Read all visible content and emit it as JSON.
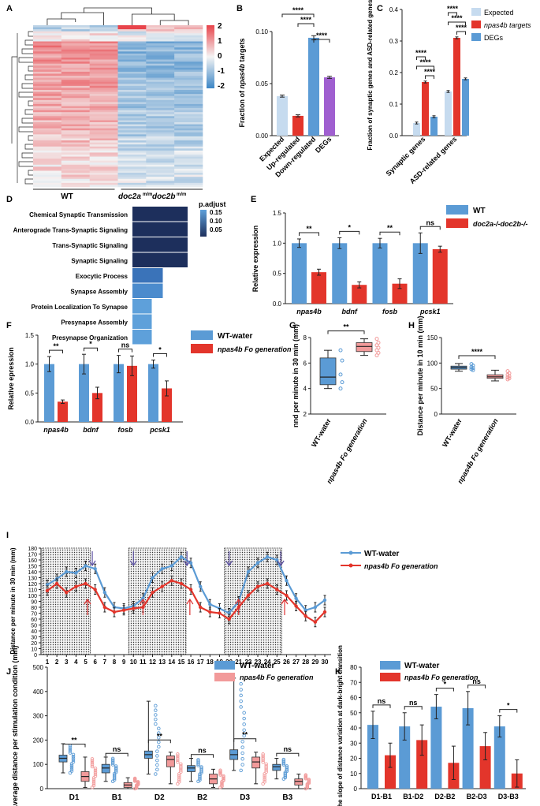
{
  "panels": {
    "A": {
      "letter": "A",
      "colorbar_ticks": [
        "2",
        "1",
        "0",
        "-1",
        "-2"
      ],
      "group_labels": [
        "WT",
        "doc2a",
        "m/m",
        "doc2b",
        "m/m"
      ],
      "colors": {
        "high": "#e8434a",
        "mid": "#f4f4f4",
        "low": "#3c86c6"
      }
    },
    "B": {
      "letter": "B",
      "chart_data": {
        "type": "bar",
        "categories": [
          "Expected",
          "Up-regulated",
          "Down-regulated",
          "DEGs"
        ],
        "values": [
          0.038,
          0.019,
          0.094,
          0.056
        ],
        "errors": [
          0.001,
          0.001,
          0.002,
          0.001
        ],
        "colors": [
          "#c6dbef",
          "#e3352b",
          "#5b9bd5",
          "#a05fd0"
        ],
        "ylabel_prefix": "Fraction of ",
        "ylabel_italic": "npas4b",
        "ylabel_suffix": " targets",
        "ylim": [
          0,
          0.1
        ],
        "yticks": [
          "0.00",
          "0.05",
          "0.10"
        ],
        "sig": [
          {
            "a": 0,
            "b": 2,
            "label": "****"
          },
          {
            "a": 1,
            "b": 2,
            "label": "****"
          },
          {
            "a": 2,
            "b": 3,
            "label": "****"
          }
        ]
      }
    },
    "C": {
      "letter": "C",
      "chart_data": {
        "type": "bar",
        "groups": [
          "Synaptic genes",
          "ASD-related genes"
        ],
        "series": [
          {
            "name": "Expected",
            "values": [
              0.04,
              0.14
            ],
            "color": "#c6dbef"
          },
          {
            "name": "npas4b targets",
            "values": [
              0.17,
              0.31
            ],
            "color": "#e3352b"
          },
          {
            "name": "DEGs",
            "values": [
              0.06,
              0.18
            ],
            "color": "#5b9bd5"
          }
        ],
        "ylabel": "Fraction of synaptic genes and ASD-related genes",
        "ylim": [
          0,
          0.4
        ],
        "yticks": [
          "0.0",
          "0.1",
          "0.2",
          "0.3",
          "0.4"
        ],
        "sig_label": "****"
      }
    },
    "D": {
      "letter": "D",
      "chart_data": {
        "type": "bar",
        "terms": [
          "Chemical Synaptic Transmission",
          "Anterograde Trans-Synaptic Signaling",
          "Trans-Synaptic Signaling",
          "Synaptic Signaling",
          "Exocytic Process",
          "Synapse Assembly",
          "Protein Localization To Synapse",
          "Presynapse Assembly",
          "Presynapse Organization"
        ],
        "values": [
          1.0,
          1.0,
          1.0,
          1.0,
          0.55,
          0.55,
          0.35,
          0.35,
          0.35
        ],
        "colors": [
          "#1d2f5c",
          "#1d2f5c",
          "#1d2f5c",
          "#1d2f5c",
          "#3a73b9",
          "#4b8bcd",
          "#5ea0da",
          "#5ea0da",
          "#5ea0da"
        ],
        "legend_title": "p.adjust",
        "legend_ticks": [
          "0.15",
          "0.10",
          "0.05"
        ]
      }
    },
    "E": {
      "letter": "E",
      "chart_data": {
        "type": "bar",
        "categories": [
          "npas4b",
          "bdnf",
          "fosb",
          "pcsk1"
        ],
        "series": [
          {
            "name": "WT",
            "values": [
              1.0,
              1.0,
              1.0,
              1.0
            ],
            "errors": [
              0.07,
              0.09,
              0.08,
              0.17
            ],
            "color": "#5b9bd5"
          },
          {
            "name": "doc2a-/-doc2b-/-",
            "values": [
              0.52,
              0.31,
              0.33,
              0.9
            ],
            "errors": [
              0.05,
              0.05,
              0.08,
              0.05
            ],
            "color": "#e3352b"
          }
        ],
        "sig": [
          "**",
          "*",
          "**",
          "ns"
        ],
        "ylabel": "Relative expression",
        "ylim": [
          0,
          1.5
        ],
        "yticks": [
          "0.0",
          "0.5",
          "1.0",
          "1.5"
        ]
      }
    },
    "F": {
      "letter": "F",
      "chart_data": {
        "type": "bar",
        "categories": [
          "npas4b",
          "bdnf",
          "fosb",
          "pcsk1"
        ],
        "series": [
          {
            "name": "WT-water",
            "values": [
              1.0,
              1.0,
              1.0,
              1.0
            ],
            "errors": [
              0.13,
              0.17,
              0.15,
              0.07
            ],
            "color": "#5b9bd5"
          },
          {
            "name": "npas4b Fo generation",
            "values": [
              0.35,
              0.5,
              0.97,
              0.58
            ],
            "errors": [
              0.03,
              0.1,
              0.17,
              0.13
            ],
            "color": "#e3352b"
          }
        ],
        "sig": [
          "**",
          "*",
          "ns",
          "*"
        ],
        "ylabel": "Relative epression",
        "ylim": [
          0,
          1.5
        ],
        "yticks": [
          "0.0",
          "0.5",
          "1.0",
          "1.5"
        ]
      }
    },
    "G": {
      "letter": "G",
      "chart_data": {
        "type": "boxplot",
        "categories": [
          "WT-water",
          "npas4b Fo generation"
        ],
        "boxes": [
          {
            "min": 4.0,
            "q1": 4.3,
            "median": 4.9,
            "q3": 6.4,
            "max": 7.0
          },
          {
            "min": 6.6,
            "q1": 6.9,
            "median": 7.3,
            "q3": 7.6,
            "max": 7.9
          }
        ],
        "points": [
          [
            7.0,
            6.2,
            5.1,
            4.5,
            4.0
          ],
          [
            7.9,
            7.6,
            7.4,
            7.2,
            7.0,
            6.8,
            6.6
          ]
        ],
        "ylabel": "nnd per minute in 30 min (mm)",
        "ylim": [
          2,
          8
        ],
        "yticks": [
          "2",
          "4",
          "6",
          "8"
        ],
        "sig": "**"
      }
    },
    "H": {
      "letter": "H",
      "chart_data": {
        "type": "boxplot",
        "categories": [
          "WT-water",
          "npas4b Fo generation"
        ],
        "boxes": [
          {
            "min": 84,
            "q1": 88,
            "median": 91,
            "q3": 94,
            "max": 99
          },
          {
            "min": 65,
            "q1": 70,
            "median": 73,
            "q3": 77,
            "max": 86
          }
        ],
        "points": [
          [
            98,
            95,
            92,
            90,
            88,
            86
          ],
          [
            84,
            80,
            77,
            74,
            72,
            70,
            68
          ]
        ],
        "ylabel": "Distance per minute in 10 min (mm)",
        "ylim": [
          0,
          150
        ],
        "yticks": [
          "0",
          "50",
          "100",
          "150"
        ],
        "sig": "****"
      }
    },
    "I": {
      "letter": "I",
      "chart_data": {
        "type": "line",
        "x": [
          1,
          2,
          3,
          4,
          5,
          6,
          7,
          8,
          9,
          10,
          11,
          12,
          13,
          14,
          15,
          16,
          17,
          18,
          19,
          20,
          21,
          22,
          23,
          24,
          25,
          26,
          27,
          28,
          29,
          30
        ],
        "series": [
          {
            "name": "WT-water",
            "color": "#5b9bd5",
            "values": [
              118,
              128,
              140,
              138,
              150,
              145,
              105,
              80,
              78,
              82,
              95,
              130,
              145,
              150,
              165,
              155,
              115,
              85,
              78,
              70,
              90,
              140,
              155,
              165,
              160,
              125,
              95,
              75,
              80,
              92
            ]
          },
          {
            "name": "npas4b Fo generation",
            "color": "#e3352b",
            "values": [
              108,
              120,
              105,
              115,
              120,
              110,
              80,
              72,
              75,
              78,
              80,
              105,
              115,
              125,
              120,
              110,
              80,
              72,
              70,
              60,
              80,
              100,
              115,
              120,
              110,
              100,
              82,
              65,
              55,
              72
            ]
          }
        ],
        "dark_periods": [
          [
            1,
            5
          ],
          [
            10,
            15
          ],
          [
            20,
            25
          ]
        ],
        "ylabel": "Distance per minute in 30 min (mm)",
        "ylim": [
          0,
          180
        ],
        "yticks": [
          "0",
          "10",
          "20",
          "30",
          "40",
          "50",
          "60",
          "70",
          "80",
          "90",
          "100",
          "110",
          "120",
          "130",
          "140",
          "150",
          "160",
          "170",
          "180"
        ]
      }
    },
    "J": {
      "letter": "J",
      "chart_data": {
        "type": "boxplot",
        "categories": [
          "D1",
          "B1",
          "D2",
          "B2",
          "D3",
          "B3"
        ],
        "series": [
          {
            "name": "WT-water",
            "color": "#5b9bd5",
            "boxes": [
              {
                "min": 65,
                "q1": 110,
                "median": 125,
                "q3": 138,
                "max": 185
              },
              {
                "min": 30,
                "q1": 65,
                "median": 85,
                "q3": 100,
                "max": 130
              },
              {
                "min": 60,
                "q1": 125,
                "median": 140,
                "q3": 155,
                "max": 360
              },
              {
                "min": 30,
                "q1": 70,
                "median": 85,
                "q3": 95,
                "max": 125
              },
              {
                "min": 75,
                "q1": 120,
                "median": 140,
                "q3": 160,
                "max": 455
              },
              {
                "min": 40,
                "q1": 75,
                "median": 90,
                "q3": 100,
                "max": 125
              }
            ]
          },
          {
            "name": "npas4b Fo generation",
            "color": "#f29a9a",
            "boxes": [
              {
                "min": 5,
                "q1": 30,
                "median": 50,
                "q3": 70,
                "max": 130
              },
              {
                "min": 0,
                "q1": 5,
                "median": 15,
                "q3": 25,
                "max": 45
              },
              {
                "min": 20,
                "q1": 90,
                "median": 120,
                "q3": 135,
                "max": 150
              },
              {
                "min": 5,
                "q1": 20,
                "median": 40,
                "q3": 60,
                "max": 80
              },
              {
                "min": 20,
                "q1": 85,
                "median": 110,
                "q3": 130,
                "max": 150
              },
              {
                "min": 0,
                "q1": 15,
                "median": 30,
                "q3": 40,
                "max": 60
              }
            ]
          }
        ],
        "sig": [
          "**",
          "ns",
          "**",
          "ns",
          "**",
          "ns"
        ],
        "ylabel": "Average distance per stimulation condition (mm)",
        "ylim": [
          0,
          500
        ],
        "yticks": [
          "0",
          "100",
          "200",
          "300",
          "400",
          "500"
        ]
      }
    },
    "K": {
      "letter": "K",
      "chart_data": {
        "type": "bar",
        "categories": [
          "D1-B1",
          "B1-D2",
          "D2-B2",
          "B2-D3",
          "D3-B3"
        ],
        "series": [
          {
            "name": "WT-water",
            "values": [
              42,
              41,
              54,
              53,
              41
            ],
            "errors": [
              9,
              9,
              8,
              11,
              7
            ],
            "color": "#5b9bd5"
          },
          {
            "name": "npas4b Fo generation",
            "values": [
              22,
              32,
              17,
              28,
              10
            ],
            "errors": [
              8,
              10,
              11,
              9,
              9
            ],
            "color": "#e3352b"
          }
        ],
        "sig": [
          "ns",
          "ns",
          "*",
          "ns",
          "*"
        ],
        "ylabel": "The slope of distance variation at dark-bright transition",
        "ylim": [
          0,
          80
        ],
        "yticks": [
          "0",
          "10",
          "20",
          "30",
          "40",
          "50",
          "60",
          "70",
          "80"
        ]
      }
    }
  }
}
